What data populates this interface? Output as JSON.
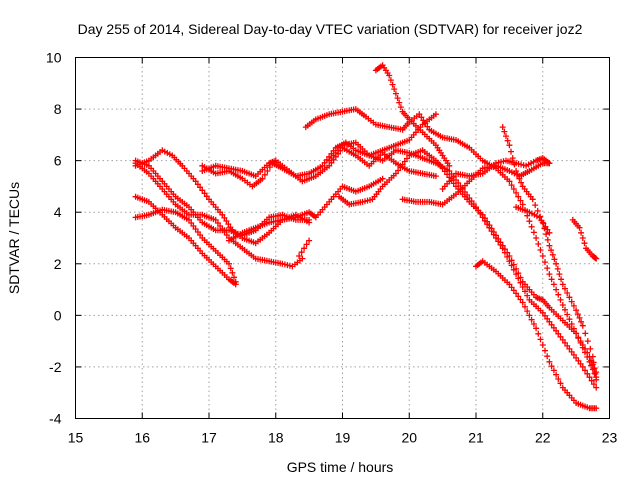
{
  "chart_data": {
    "type": "scatter",
    "title": "Day 255 of 2014, Sidereal Day-to-day VTEC variation (SDTVAR) for receiver joz2",
    "xlabel": "GPS time / hours",
    "ylabel": "SDTVAR / TECUs",
    "xlim": [
      15,
      23
    ],
    "ylim": [
      -4,
      10
    ],
    "xticks": [
      15,
      16,
      17,
      18,
      19,
      20,
      21,
      22,
      23
    ],
    "yticks": [
      -4,
      -2,
      0,
      2,
      4,
      6,
      8,
      10
    ],
    "grid": true,
    "marker": "+",
    "color": "#ff0000",
    "series": [
      {
        "name": "s1",
        "points": [
          [
            15.9,
            6.0
          ],
          [
            16.1,
            5.8
          ],
          [
            16.3,
            5.2
          ],
          [
            16.5,
            4.6
          ],
          [
            16.7,
            4.2
          ],
          [
            16.9,
            3.6
          ],
          [
            17.1,
            3.3
          ],
          [
            17.3,
            3.3
          ],
          [
            17.5,
            3.1
          ],
          [
            17.7,
            3.3
          ],
          [
            17.9,
            3.8
          ],
          [
            18.1,
            3.9
          ],
          [
            18.3,
            3.7
          ],
          [
            18.5,
            3.7
          ]
        ]
      },
      {
        "name": "s2",
        "points": [
          [
            15.9,
            5.8
          ],
          [
            16.1,
            6.0
          ],
          [
            16.3,
            6.4
          ],
          [
            16.45,
            6.2
          ],
          [
            16.6,
            5.8
          ],
          [
            16.8,
            5.2
          ],
          [
            17.0,
            4.5
          ],
          [
            17.2,
            3.9
          ],
          [
            17.35,
            3.3
          ],
          [
            17.5,
            3.0
          ],
          [
            17.7,
            2.8
          ],
          [
            17.9,
            3.2
          ],
          [
            18.1,
            3.7
          ],
          [
            18.3,
            3.9
          ],
          [
            18.5,
            3.6
          ]
        ]
      },
      {
        "name": "s3",
        "points": [
          [
            15.9,
            5.9
          ],
          [
            16.1,
            5.5
          ],
          [
            16.3,
            4.9
          ],
          [
            16.5,
            4.3
          ],
          [
            16.7,
            3.9
          ],
          [
            16.9,
            3.9
          ],
          [
            17.1,
            3.7
          ],
          [
            17.3,
            3.0
          ],
          [
            17.5,
            2.6
          ],
          [
            17.7,
            2.2
          ],
          [
            17.9,
            2.1
          ],
          [
            18.1,
            2.0
          ],
          [
            18.25,
            1.9
          ],
          [
            18.4,
            2.2
          ]
        ]
      },
      {
        "name": "s4",
        "points": [
          [
            15.9,
            4.6
          ],
          [
            16.1,
            4.4
          ],
          [
            16.3,
            3.9
          ],
          [
            16.5,
            3.4
          ],
          [
            16.7,
            3.0
          ],
          [
            16.9,
            2.4
          ],
          [
            17.1,
            1.9
          ],
          [
            17.3,
            1.4
          ],
          [
            17.4,
            1.2
          ]
        ]
      },
      {
        "name": "s5",
        "points": [
          [
            15.9,
            3.8
          ],
          [
            16.1,
            3.9
          ],
          [
            16.3,
            4.1
          ],
          [
            16.5,
            4.0
          ],
          [
            16.7,
            3.7
          ],
          [
            16.9,
            3.0
          ],
          [
            17.1,
            2.5
          ],
          [
            17.3,
            2.0
          ],
          [
            17.4,
            1.3
          ]
        ]
      },
      {
        "name": "s6",
        "points": [
          [
            16.9,
            5.8
          ],
          [
            17.1,
            5.5
          ],
          [
            17.3,
            5.6
          ],
          [
            17.5,
            5.3
          ],
          [
            17.65,
            5.0
          ],
          [
            17.8,
            5.3
          ],
          [
            17.95,
            5.9
          ],
          [
            18.1,
            5.7
          ],
          [
            18.3,
            5.4
          ],
          [
            18.5,
            5.5
          ],
          [
            18.7,
            5.8
          ],
          [
            18.9,
            6.5
          ],
          [
            19.05,
            6.7
          ],
          [
            19.2,
            6.4
          ],
          [
            19.4,
            6.2
          ],
          [
            19.6,
            6.4
          ],
          [
            19.8,
            6.6
          ],
          [
            20.0,
            6.8
          ],
          [
            20.2,
            7.4
          ],
          [
            20.4,
            7.8
          ]
        ]
      },
      {
        "name": "s7",
        "points": [
          [
            16.9,
            5.6
          ],
          [
            17.1,
            5.8
          ],
          [
            17.3,
            5.7
          ],
          [
            17.5,
            5.6
          ],
          [
            17.7,
            5.4
          ],
          [
            17.9,
            5.9
          ],
          [
            18.0,
            6.0
          ],
          [
            18.2,
            5.6
          ],
          [
            18.4,
            5.2
          ],
          [
            18.6,
            5.4
          ],
          [
            18.8,
            5.8
          ],
          [
            19.0,
            6.5
          ],
          [
            19.2,
            6.2
          ],
          [
            19.4,
            5.8
          ],
          [
            19.6,
            6.3
          ],
          [
            19.8,
            5.9
          ],
          [
            20.0,
            5.6
          ],
          [
            20.2,
            5.5
          ],
          [
            20.4,
            5.4
          ]
        ]
      },
      {
        "name": "s8",
        "points": [
          [
            17.3,
            2.9
          ],
          [
            17.5,
            3.2
          ],
          [
            17.7,
            3.4
          ],
          [
            17.9,
            3.6
          ],
          [
            18.1,
            3.7
          ],
          [
            18.3,
            3.8
          ],
          [
            18.5,
            4.0
          ],
          [
            18.6,
            3.8
          ],
          [
            18.8,
            4.4
          ],
          [
            19.0,
            5.0
          ],
          [
            19.2,
            4.8
          ],
          [
            19.4,
            5.0
          ],
          [
            19.6,
            5.3
          ]
        ]
      },
      {
        "name": "s9",
        "points": [
          [
            18.35,
            2.3
          ],
          [
            18.5,
            2.9
          ]
        ]
      },
      {
        "name": "s10",
        "points": [
          [
            18.45,
            7.3
          ],
          [
            18.6,
            7.6
          ],
          [
            18.8,
            7.8
          ],
          [
            19.0,
            7.9
          ],
          [
            19.2,
            8.0
          ],
          [
            19.35,
            7.7
          ],
          [
            19.5,
            7.4
          ],
          [
            19.7,
            7.3
          ],
          [
            19.9,
            7.2
          ],
          [
            20.0,
            7.5
          ],
          [
            20.15,
            7.8
          ],
          [
            20.3,
            7.2
          ],
          [
            20.5,
            6.9
          ],
          [
            20.7,
            6.8
          ],
          [
            20.9,
            6.5
          ],
          [
            21.1,
            6.0
          ],
          [
            21.3,
            5.7
          ],
          [
            21.5,
            5.2
          ],
          [
            21.7,
            4.3
          ],
          [
            21.9,
            3.0
          ],
          [
            22.1,
            1.6
          ],
          [
            22.3,
            0.4
          ],
          [
            22.5,
            -0.7
          ],
          [
            22.7,
            -1.8
          ],
          [
            22.8,
            -2.4
          ]
        ]
      },
      {
        "name": "s11",
        "points": [
          [
            18.8,
            6.0
          ],
          [
            19.0,
            6.6
          ],
          [
            19.2,
            6.7
          ],
          [
            19.4,
            6.2
          ],
          [
            19.6,
            6.0
          ],
          [
            19.8,
            6.4
          ],
          [
            20.0,
            6.3
          ],
          [
            20.2,
            6.1
          ],
          [
            20.4,
            5.9
          ],
          [
            20.6,
            5.6
          ],
          [
            20.8,
            4.9
          ],
          [
            21.0,
            4.2
          ],
          [
            21.2,
            3.4
          ],
          [
            21.4,
            2.6
          ],
          [
            21.6,
            1.6
          ],
          [
            21.8,
            0.6
          ],
          [
            22.0,
            0.1
          ],
          [
            22.2,
            -0.6
          ],
          [
            22.4,
            -1.3
          ],
          [
            22.6,
            -2.0
          ],
          [
            22.8,
            -2.8
          ]
        ]
      },
      {
        "name": "s12",
        "points": [
          [
            18.95,
            4.6
          ],
          [
            19.1,
            4.3
          ],
          [
            19.3,
            4.4
          ],
          [
            19.45,
            4.5
          ],
          [
            19.6,
            5.0
          ],
          [
            19.8,
            5.5
          ],
          [
            20.0,
            6.2
          ],
          [
            20.2,
            6.4
          ],
          [
            20.4,
            6.0
          ],
          [
            20.5,
            5.7
          ],
          [
            20.7,
            5.0
          ],
          [
            20.9,
            4.4
          ],
          [
            21.1,
            3.9
          ],
          [
            21.3,
            3.1
          ],
          [
            21.5,
            2.3
          ],
          [
            21.7,
            1.3
          ],
          [
            21.9,
            0.7
          ],
          [
            22.0,
            0.6
          ],
          [
            22.1,
            0.3
          ],
          [
            22.3,
            -0.2
          ],
          [
            22.5,
            -0.7
          ],
          [
            22.7,
            -1.6
          ],
          [
            22.8,
            -2.2
          ]
        ]
      },
      {
        "name": "s13",
        "points": [
          [
            19.5,
            9.5
          ],
          [
            19.6,
            9.7
          ],
          [
            19.7,
            9.3
          ],
          [
            19.8,
            8.6
          ],
          [
            19.9,
            7.9
          ],
          [
            20.0,
            7.6
          ],
          [
            20.2,
            7.1
          ],
          [
            20.4,
            6.6
          ],
          [
            20.5,
            6.2
          ],
          [
            20.6,
            5.8
          ]
        ]
      },
      {
        "name": "s14",
        "points": [
          [
            19.9,
            4.5
          ],
          [
            20.1,
            4.4
          ],
          [
            20.3,
            4.4
          ],
          [
            20.5,
            4.3
          ],
          [
            20.7,
            4.7
          ],
          [
            20.9,
            5.2
          ],
          [
            21.1,
            5.7
          ],
          [
            21.3,
            5.8
          ],
          [
            21.5,
            5.6
          ],
          [
            21.65,
            5.4
          ],
          [
            21.8,
            5.6
          ],
          [
            22.0,
            5.9
          ],
          [
            22.1,
            5.9
          ]
        ]
      },
      {
        "name": "s15",
        "points": [
          [
            20.5,
            4.9
          ],
          [
            20.7,
            5.5
          ],
          [
            20.9,
            5.4
          ],
          [
            21.1,
            5.5
          ],
          [
            21.3,
            5.9
          ],
          [
            21.45,
            6.0
          ],
          [
            21.6,
            5.9
          ],
          [
            21.75,
            5.8
          ],
          [
            21.9,
            6.0
          ],
          [
            22.0,
            6.1
          ],
          [
            22.1,
            5.9
          ]
        ]
      },
      {
        "name": "s16",
        "points": [
          [
            21.0,
            1.9
          ],
          [
            21.1,
            2.1
          ],
          [
            21.3,
            1.7
          ],
          [
            21.5,
            1.2
          ],
          [
            21.7,
            0.5
          ],
          [
            21.9,
            -0.5
          ],
          [
            22.1,
            -1.8
          ],
          [
            22.3,
            -2.8
          ],
          [
            22.5,
            -3.4
          ],
          [
            22.7,
            -3.6
          ],
          [
            22.8,
            -3.6
          ]
        ]
      },
      {
        "name": "s17",
        "points": [
          [
            21.4,
            7.3
          ],
          [
            21.5,
            6.6
          ],
          [
            21.6,
            5.6
          ],
          [
            21.7,
            5.0
          ],
          [
            21.85,
            4.5
          ],
          [
            22.0,
            3.6
          ],
          [
            22.1,
            2.7
          ],
          [
            22.2,
            2.0
          ],
          [
            22.3,
            1.2
          ],
          [
            22.5,
            0.2
          ],
          [
            22.6,
            -0.4
          ],
          [
            22.75,
            -1.6
          ],
          [
            22.8,
            -2.5
          ]
        ]
      },
      {
        "name": "s18",
        "points": [
          [
            21.6,
            4.2
          ],
          [
            21.8,
            4.0
          ],
          [
            21.95,
            3.8
          ],
          [
            22.1,
            3.2
          ]
        ]
      },
      {
        "name": "s19",
        "points": [
          [
            22.45,
            3.7
          ],
          [
            22.55,
            3.4
          ],
          [
            22.65,
            2.6
          ],
          [
            22.75,
            2.3
          ],
          [
            22.8,
            2.2
          ]
        ]
      }
    ]
  }
}
